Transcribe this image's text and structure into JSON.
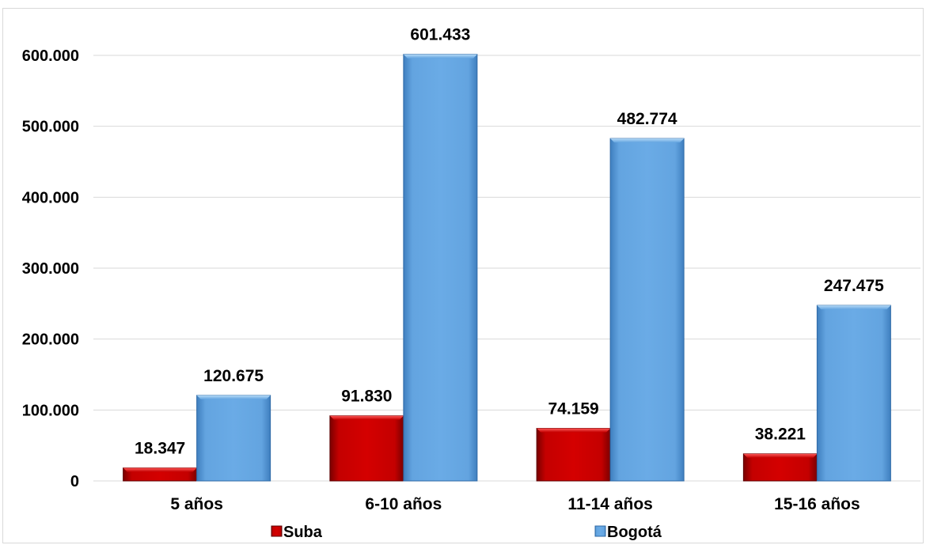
{
  "chart_data": {
    "type": "bar",
    "categories": [
      "5 años",
      "6-10 años",
      "11-14 años",
      "15-16 años"
    ],
    "series": [
      {
        "name": "Suba",
        "color": "#cc0000",
        "values": [
          18347,
          91830,
          74159,
          38221
        ],
        "labels": [
          "18.347",
          "91.830",
          "74.159",
          "38.221"
        ]
      },
      {
        "name": "Bogotá",
        "color": "#5b9bd5",
        "values": [
          120675,
          601433,
          482774,
          247475
        ],
        "labels": [
          "120.675",
          "601.433",
          "482.774",
          "247.475"
        ]
      }
    ],
    "yticks": [
      0,
      100000,
      200000,
      300000,
      400000,
      500000,
      600000
    ],
    "ytick_labels": [
      "0",
      "100.000",
      "200.000",
      "300.000",
      "400.000",
      "500.000",
      "600.000"
    ],
    "ylim": [
      0,
      600000
    ],
    "grid": true,
    "legend_position": "bottom",
    "title": "",
    "xlabel": "",
    "ylabel": ""
  }
}
